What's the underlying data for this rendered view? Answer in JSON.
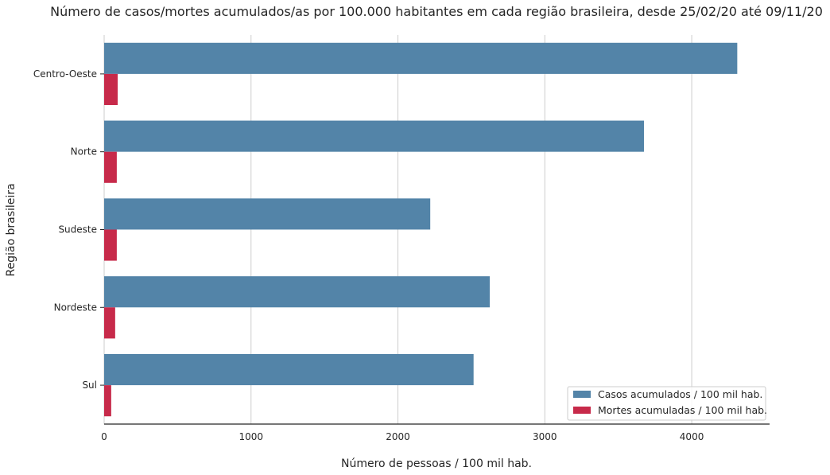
{
  "chart_data": {
    "type": "bar",
    "orientation": "horizontal",
    "title": "Número de casos/mortes acumulados/as por 100.000 habitantes em cada região brasileira, desde 25/02/20 até 09/11/20",
    "xlabel": "Número de pessoas / 100 mil hab.",
    "ylabel": "Região brasileira",
    "xlim": [
      0,
      4530
    ],
    "xticks": [
      0,
      1000,
      2000,
      3000,
      4000
    ],
    "xtick_labels": [
      "0",
      "1000",
      "2000",
      "3000",
      "4000"
    ],
    "grid": "vertical",
    "legend_position": "bottom-right",
    "categories": [
      "Centro-Oeste",
      "Norte",
      "Sudeste",
      "Nordeste",
      "Sul"
    ],
    "series": [
      {
        "name": "Casos acumulados / 100 mil hab.",
        "color": "#5384a8",
        "values": [
          4310,
          3675,
          2220,
          2625,
          2515
        ]
      },
      {
        "name": "Mortes acumuladas / 100 mil hab.",
        "color": "#c72a4a",
        "values": [
          92,
          86,
          86,
          75,
          48
        ]
      }
    ]
  }
}
